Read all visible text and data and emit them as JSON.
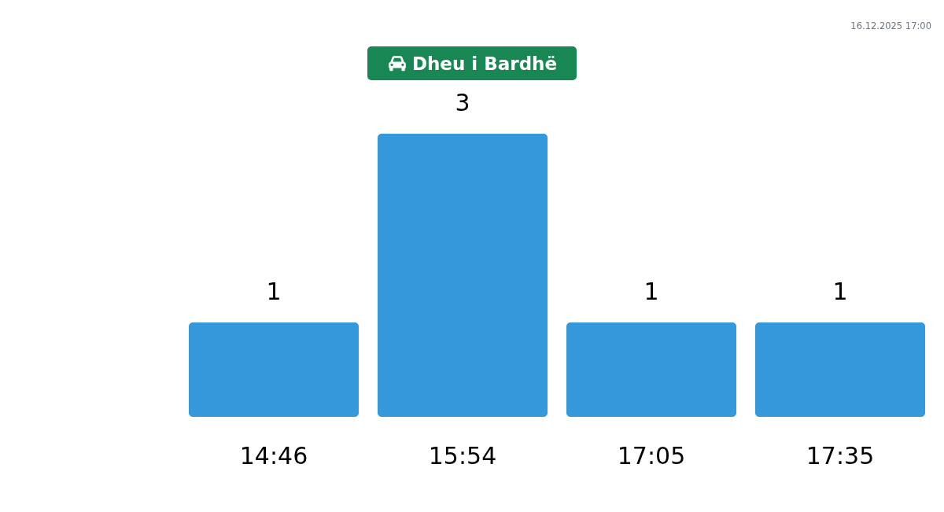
{
  "chart_data": {
    "type": "bar",
    "title": "Dheu i Bardhë",
    "categories": [
      "14:46",
      "15:54",
      "17:05",
      "17:35"
    ],
    "values": [
      1,
      3,
      1,
      1
    ],
    "color": "#3598db",
    "data_labels": true,
    "annotations": [
      "16.12.2025 17:00"
    ]
  }
}
